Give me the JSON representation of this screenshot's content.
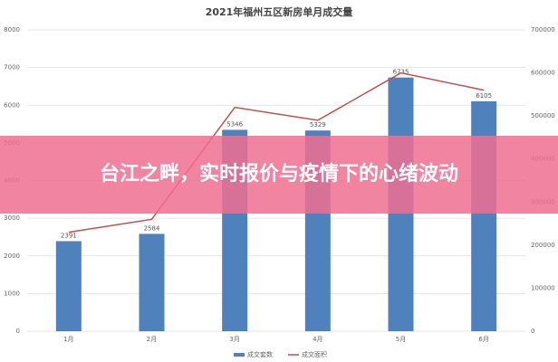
{
  "headline": "台江之畔，实时报价与疫情下的心绪波动",
  "chart_data": {
    "type": "bar",
    "title": "2021年福州五区新房单月成交量",
    "categories": [
      "1月",
      "2月",
      "3月",
      "4月",
      "5月",
      "6月"
    ],
    "series": [
      {
        "name": "成交套数",
        "type": "bar",
        "color": "#4f81bd",
        "values": [
          2391,
          2584,
          5346,
          5329,
          6735,
          6105
        ]
      },
      {
        "name": "成交面积",
        "type": "line",
        "axis": "y2",
        "color": "#c0504d",
        "values": [
          230000,
          260000,
          520000,
          490000,
          600000,
          560000
        ]
      }
    ],
    "ylim": [
      0,
      8000
    ],
    "yticks": [
      0,
      1000,
      2000,
      3000,
      4000,
      5000,
      6000,
      7000,
      8000
    ],
    "y2lim": [
      0,
      700000
    ],
    "y2ticks": [
      0,
      100000,
      200000,
      300000,
      400000,
      500000,
      600000,
      700000
    ],
    "grid": true,
    "legend": "bottom"
  }
}
